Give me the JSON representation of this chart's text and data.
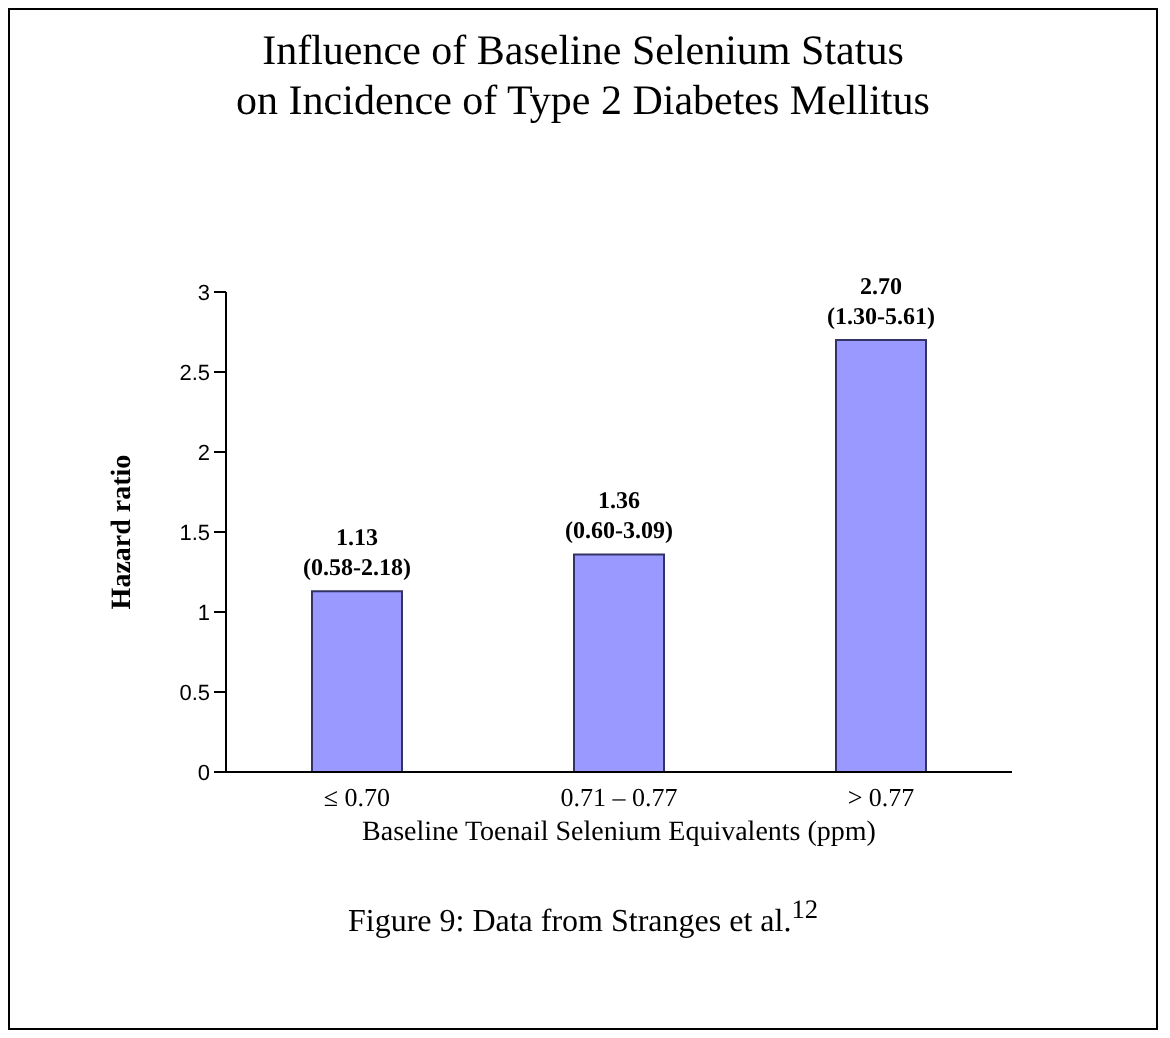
{
  "chart_data": {
    "type": "bar",
    "title": "Influence of Baseline Selenium Status\non Incidence of Type 2 Diabetes Mellitus",
    "xlabel": "Baseline Toenail Selenium Equivalents (ppm)",
    "ylabel": "Hazard ratio",
    "categories": [
      "≤ 0.70",
      "0.71 – 0.77",
      "> 0.77"
    ],
    "values": [
      1.13,
      1.36,
      2.7
    ],
    "color": "#9999ff",
    "value_labels": [
      "1.13\n(0.58-2.18)",
      "1.36\n(0.60-3.09)",
      "2.70\n(1.30-5.61)"
    ],
    "ylim": [
      0,
      3
    ],
    "yticks": [
      0,
      0.5,
      1,
      1.5,
      2,
      2.5,
      3
    ],
    "grid": false,
    "legend": false,
    "annotations": [
      "Figure 9: Data from Stranges et al.$^{12}$"
    ]
  }
}
